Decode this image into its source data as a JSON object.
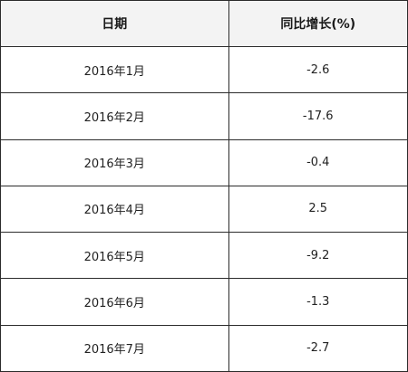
{
  "table": {
    "headers": [
      "日期",
      "同比增长(%)"
    ],
    "rows": [
      [
        "2016年1月",
        "-2.6"
      ],
      [
        "2016年2月",
        "-17.6"
      ],
      [
        "2016年3月",
        "-0.4"
      ],
      [
        "2016年4月",
        "2.5"
      ],
      [
        "2016年5月",
        "-9.2"
      ],
      [
        "2016年6月",
        "-1.3"
      ],
      [
        "2016年7月",
        "-2.7"
      ]
    ]
  }
}
